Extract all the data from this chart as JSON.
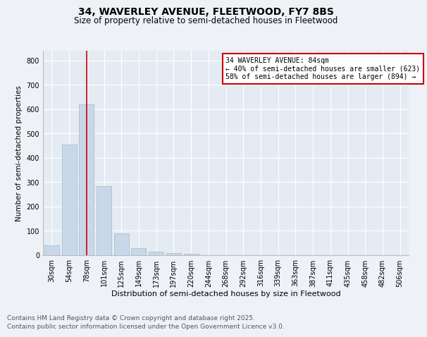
{
  "title1": "34, WAVERLEY AVENUE, FLEETWOOD, FY7 8BS",
  "title2": "Size of property relative to semi-detached houses in Fleetwood",
  "xlabel": "Distribution of semi-detached houses by size in Fleetwood",
  "ylabel": "Number of semi-detached properties",
  "categories": [
    "30sqm",
    "54sqm",
    "78sqm",
    "101sqm",
    "125sqm",
    "149sqm",
    "173sqm",
    "197sqm",
    "220sqm",
    "244sqm",
    "268sqm",
    "292sqm",
    "316sqm",
    "339sqm",
    "363sqm",
    "387sqm",
    "411sqm",
    "435sqm",
    "458sqm",
    "482sqm",
    "506sqm"
  ],
  "values": [
    40,
    455,
    620,
    285,
    90,
    30,
    15,
    10,
    7,
    0,
    0,
    0,
    0,
    0,
    0,
    0,
    0,
    0,
    0,
    0,
    0
  ],
  "bar_color": "#c8d8e8",
  "bar_edge_color": "#a0b8cc",
  "vline_x": 2,
  "vline_color": "#cc0000",
  "annotation_title": "34 WAVERLEY AVENUE: 84sqm",
  "annotation_line1": "← 40% of semi-detached houses are smaller (623)",
  "annotation_line2": "58% of semi-detached houses are larger (894) →",
  "annotation_box_color": "#cc0000",
  "ylim": [
    0,
    840
  ],
  "yticks": [
    0,
    100,
    200,
    300,
    400,
    500,
    600,
    700,
    800
  ],
  "footnote1": "Contains HM Land Registry data © Crown copyright and database right 2025.",
  "footnote2": "Contains public sector information licensed under the Open Government Licence v3.0.",
  "bg_color": "#eef2f7",
  "plot_bg_color": "#e4ebf3",
  "grid_color": "#ffffff",
  "title1_fontsize": 10,
  "title2_fontsize": 8.5,
  "xlabel_fontsize": 8,
  "ylabel_fontsize": 7.5,
  "tick_fontsize": 7,
  "annot_fontsize": 7,
  "footnote_fontsize": 6.5
}
